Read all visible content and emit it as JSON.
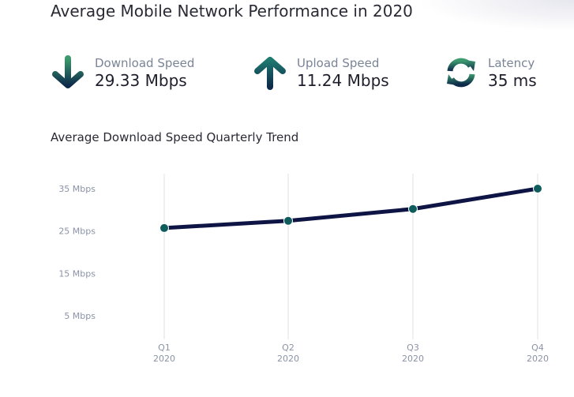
{
  "title": "Average Mobile Network Performance in 2020",
  "stats": [
    {
      "label": "Download Speed",
      "value": "29.33 Mbps",
      "icon": "arrow-down-icon"
    },
    {
      "label": "Upload Speed",
      "value": "11.24 Mbps",
      "icon": "arrow-up-icon"
    },
    {
      "label": "Latency",
      "value": "35 ms",
      "icon": "refresh-icon"
    }
  ],
  "colors": {
    "line": "#0e1545",
    "marker": "#0f5c5c",
    "grid": "#ebebeb",
    "tick": "#8a93a6"
  },
  "chart_data": {
    "type": "line",
    "title": "Average Download Speed Quarterly Trend",
    "categories": [
      [
        "Q1",
        "2020"
      ],
      [
        "Q2",
        "2020"
      ],
      [
        "Q3",
        "2020"
      ],
      [
        "Q4",
        "2020"
      ]
    ],
    "series": [
      {
        "name": "Download Speed",
        "values": [
          25.7,
          27.4,
          30.2,
          35.0
        ]
      }
    ],
    "yticks": [
      35,
      25,
      15,
      5
    ],
    "ytick_labels": [
      "35 Mbps",
      "25 Mbps",
      "15 Mbps",
      "5 Mbps"
    ],
    "ylim": [
      5,
      35
    ],
    "grid": "vertical"
  }
}
